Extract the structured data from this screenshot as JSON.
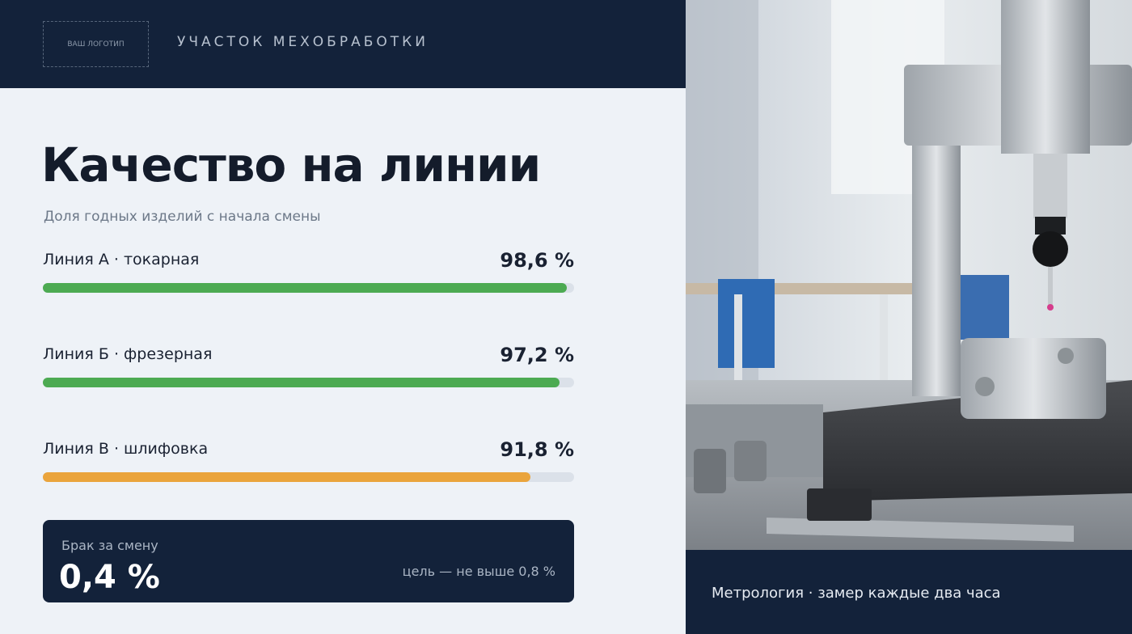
{
  "header": {
    "logo": "ВАШ ЛОГОТИП",
    "title": "УЧАСТОК МЕХОБРАБОТКИ"
  },
  "main": {
    "title": "Качество на линии",
    "subtitle": "Доля годных изделий с начала смены",
    "lines": [
      {
        "label": "Линия А · токарная",
        "value": 98.6,
        "value_label": "98,6 %",
        "color": "#4caa52"
      },
      {
        "label": "Линия Б · фрезерная",
        "value": 97.2,
        "value_label": "97,2 %",
        "color": "#4caa52"
      },
      {
        "label": "Линия В · шлифовка",
        "value": 91.8,
        "value_label": "91,8 %",
        "color": "#eaa43c"
      }
    ]
  },
  "defect_card": {
    "label": "Брак за смену",
    "value": "0,4 %",
    "target": "цель — не выше 0,8 %"
  },
  "photo": {
    "caption": "Метрология · замер каждые два часа"
  }
}
